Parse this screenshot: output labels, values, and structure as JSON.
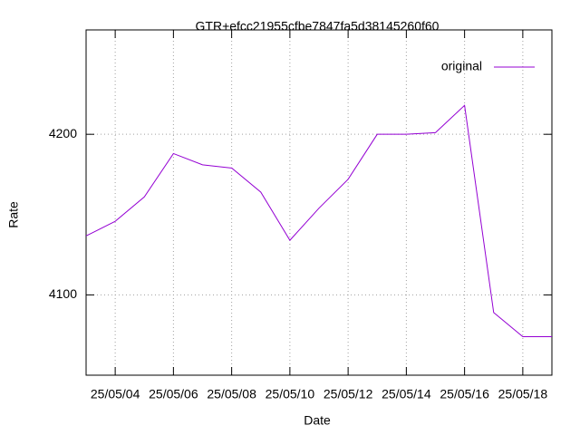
{
  "chart_data": {
    "type": "line",
    "title": "GTR+efcc21955cfbe7847fa5d38145260f60",
    "x_label": "Date",
    "y_label": "Rate",
    "x": [
      "25/05/03",
      "25/05/04",
      "25/05/05",
      "25/05/06",
      "25/05/07",
      "25/05/08",
      "25/05/09",
      "25/05/10",
      "25/05/11",
      "25/05/12",
      "25/05/13",
      "25/05/14",
      "25/05/15",
      "25/05/16",
      "25/05/17",
      "25/05/18",
      "25/05/19"
    ],
    "series": [
      {
        "name": "original",
        "color": "#9400d3",
        "values": [
          4136.7,
          4145.8,
          4161,
          4188,
          4181,
          4179,
          4164,
          4134,
          4154,
          4172,
          4200,
          4200,
          4201,
          4218,
          4089,
          4074,
          4074
        ]
      }
    ],
    "xlim": [
      "25/05/03",
      "25/05/19"
    ],
    "xticks": [
      "25/05/04",
      "25/05/06",
      "25/05/08",
      "25/05/10",
      "25/05/12",
      "25/05/14",
      "25/05/16",
      "25/05/18"
    ],
    "ylim": [
      4050,
      4265
    ],
    "yticks": [
      4100,
      4200
    ],
    "grid": true,
    "legend": "top-right"
  }
}
